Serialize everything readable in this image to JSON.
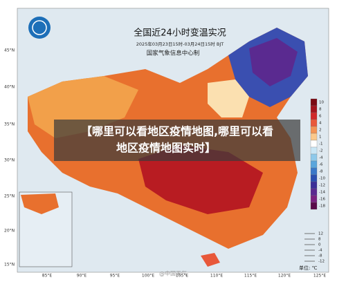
{
  "header": {
    "title": "全国近24小时变温实况",
    "subtitle": "2025年03月23日15时-03月24日15时 BJT",
    "agency": "国家气象信息中心制"
  },
  "banner": "【哪里可以看地区疫情地图,哪里可以看地区疫情地图实时】",
  "lat_labels": [
    "45°N",
    "40°N",
    "35°N",
    "30°N",
    "25°N",
    "20°N",
    "15°N"
  ],
  "lon_labels": [
    "85°E",
    "90°E",
    "95°E",
    "100°E",
    "105°E",
    "110°E",
    "115°E",
    "120°E",
    "125°E"
  ],
  "legend": {
    "items": [
      {
        "value": 10,
        "color": "#7a0a14"
      },
      {
        "value": 8,
        "color": "#a3141e"
      },
      {
        "value": 6,
        "color": "#d0282a"
      },
      {
        "value": 4,
        "color": "#e8583a"
      },
      {
        "value": 2,
        "color": "#f39455"
      },
      {
        "value": 1,
        "color": "#fbc98c"
      },
      {
        "value": -1,
        "color": "#ffffff"
      },
      {
        "value": -2,
        "color": "#c9e6f5"
      },
      {
        "value": -4,
        "color": "#8ec9ea"
      },
      {
        "value": -6,
        "color": "#5aa6dc"
      },
      {
        "value": -8,
        "color": "#3a78c8"
      },
      {
        "value": -10,
        "color": "#2a4fb0"
      },
      {
        "value": -12,
        "color": "#3a2e98"
      },
      {
        "value": -14,
        "color": "#5a2a90"
      },
      {
        "value": -16,
        "color": "#7a2280"
      },
      {
        "value": -18,
        "color": "#5a0a4a"
      }
    ],
    "unit": "单位: ℃"
  },
  "inset_legend": [
    12,
    8,
    0,
    -4,
    -8,
    -12
  ],
  "watermark": "@中国天气"
}
